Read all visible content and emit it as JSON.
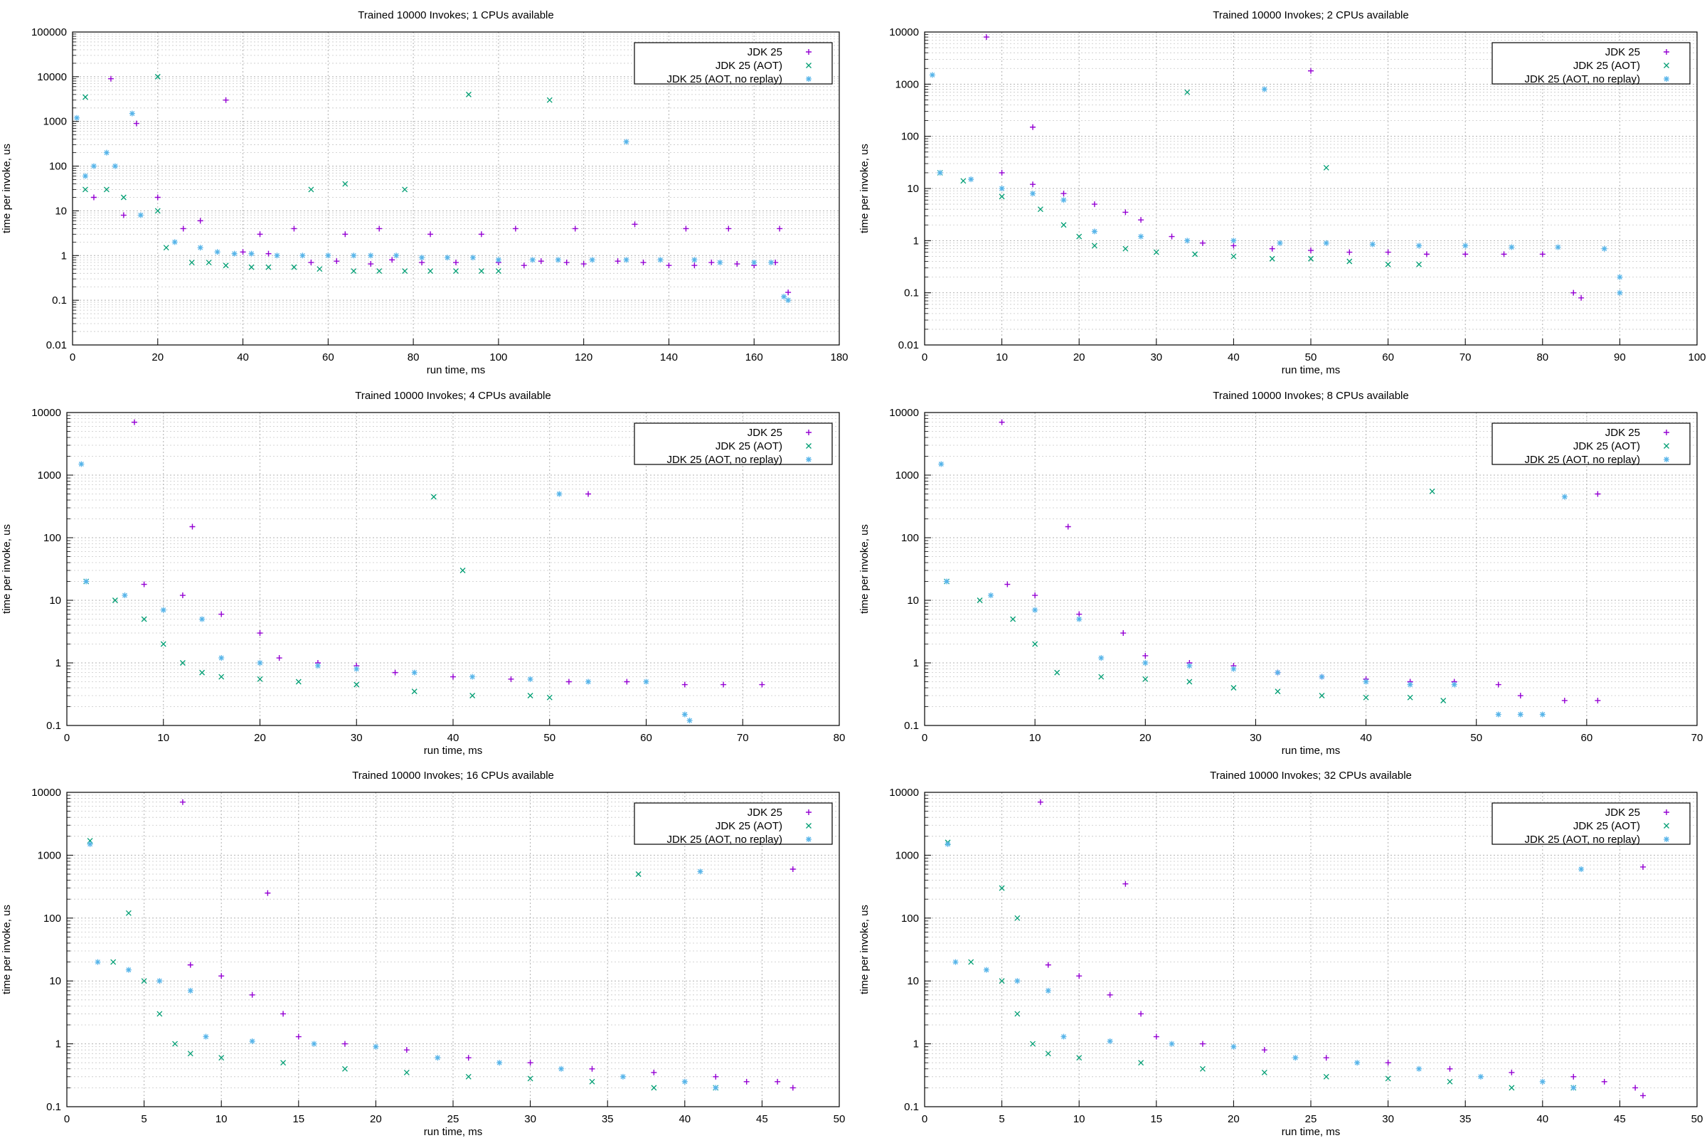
{
  "colors": {
    "jdk25": "#9400d3",
    "aot": "#009e73",
    "aot_noreplay": "#56b4e9"
  },
  "legend": [
    {
      "label": "JDK 25",
      "marker": "+",
      "color_key": "jdk25"
    },
    {
      "label": "JDK 25 (AOT)",
      "marker": "x",
      "color_key": "aot"
    },
    {
      "label": "JDK 25 (AOT, no replay)",
      "marker": "*",
      "color_key": "aot_noreplay"
    }
  ],
  "chart_data": [
    {
      "type": "scatter",
      "title": "Trained 10000 Invokes; 1 CPUs available",
      "xlabel": "run time, ms",
      "ylabel": "time per invoke, us",
      "xlim": [
        0,
        180
      ],
      "xticks": [
        0,
        20,
        40,
        60,
        80,
        100,
        120,
        140,
        160,
        180
      ],
      "ylim": [
        0.01,
        100000
      ],
      "yticks": [
        0.01,
        0.1,
        1,
        10,
        100,
        1000,
        10000,
        100000
      ],
      "ytick_labels": [
        "0.01",
        "0.1",
        "1",
        "10",
        "100",
        "1000",
        "10000",
        "100000"
      ],
      "yscale": "log",
      "grid": true,
      "legend_position": "top-right",
      "series": [
        {
          "name": "JDK 25",
          "x": [
            9,
            15,
            20,
            30,
            40,
            46,
            56,
            62,
            70,
            75,
            82,
            90,
            100,
            106,
            110,
            116,
            120,
            128,
            134,
            140,
            146,
            150,
            156,
            160,
            165,
            168,
            5,
            12,
            26,
            36,
            44,
            52,
            64,
            72,
            84,
            96,
            104,
            118,
            132,
            144,
            154,
            166
          ],
          "y": [
            9000,
            900,
            20,
            6,
            1.2,
            1.1,
            0.7,
            0.75,
            0.65,
            0.8,
            0.7,
            0.7,
            0.7,
            0.6,
            0.75,
            0.7,
            0.65,
            0.75,
            0.7,
            0.6,
            0.6,
            0.7,
            0.65,
            0.6,
            0.7,
            0.15,
            20,
            8,
            4,
            3000,
            3,
            4,
            3,
            4,
            3,
            3,
            4,
            4,
            5,
            4,
            4,
            4
          ]
        },
        {
          "name": "JDK 25 (AOT)",
          "x": [
            3,
            8,
            12,
            20,
            22,
            28,
            32,
            36,
            42,
            46,
            52,
            58,
            66,
            72,
            78,
            84,
            90,
            96,
            100,
            3,
            20,
            56,
            64,
            78,
            93,
            112
          ],
          "y": [
            3500,
            30,
            20,
            10000,
            1.5,
            0.7,
            0.7,
            0.6,
            0.55,
            0.55,
            0.55,
            0.5,
            0.45,
            0.45,
            0.45,
            0.45,
            0.45,
            0.45,
            0.45,
            30,
            10,
            30,
            40,
            30,
            4000,
            3000
          ],
          "marker": "x"
        },
        {
          "name": "JDK 25 (AOT, no replay)",
          "x": [
            1,
            3,
            5,
            8,
            10,
            14,
            16,
            24,
            30,
            34,
            38,
            42,
            48,
            54,
            60,
            66,
            70,
            76,
            82,
            88,
            94,
            100,
            108,
            114,
            122,
            130,
            138,
            146,
            152,
            160,
            164,
            167,
            168,
            130
          ],
          "y": [
            1200,
            60,
            100,
            200,
            100,
            1500,
            8,
            2,
            1.5,
            1.2,
            1.1,
            1.1,
            1,
            1,
            1,
            1,
            1,
            1,
            0.9,
            0.9,
            0.9,
            0.8,
            0.8,
            0.8,
            0.8,
            0.8,
            0.8,
            0.8,
            0.7,
            0.7,
            0.7,
            0.12,
            0.1,
            350
          ],
          "marker": "*"
        }
      ]
    },
    {
      "type": "scatter",
      "title": "Trained 10000 Invokes; 2 CPUs available",
      "xlabel": "run time, ms",
      "ylabel": "time per invoke, us",
      "xlim": [
        0,
        100
      ],
      "xticks": [
        0,
        10,
        20,
        30,
        40,
        50,
        60,
        70,
        80,
        90,
        100
      ],
      "ylim": [
        0.01,
        10000
      ],
      "yticks": [
        0.01,
        0.1,
        1,
        10,
        100,
        1000,
        10000
      ],
      "ytick_labels": [
        "0.01",
        "0.1",
        "1",
        "10",
        "100",
        "1000",
        "10000"
      ],
      "yscale": "log",
      "grid": true,
      "legend_position": "top-right",
      "series": [
        {
          "name": "JDK 25",
          "x": [
            8,
            10,
            14,
            18,
            22,
            26,
            28,
            32,
            36,
            40,
            45,
            50,
            55,
            60,
            65,
            70,
            75,
            80,
            84,
            85,
            50,
            14
          ],
          "y": [
            8000,
            20,
            12,
            8,
            5,
            3.5,
            2.5,
            1.2,
            0.9,
            0.8,
            0.7,
            0.65,
            0.6,
            0.6,
            0.55,
            0.55,
            0.55,
            0.55,
            0.1,
            0.08,
            1800,
            150
          ]
        },
        {
          "name": "JDK 25 (AOT)",
          "x": [
            2,
            5,
            10,
            15,
            18,
            20,
            22,
            26,
            30,
            35,
            40,
            45,
            50,
            55,
            60,
            64,
            34,
            52
          ],
          "y": [
            20,
            14,
            7,
            4,
            2,
            1.2,
            0.8,
            0.7,
            0.6,
            0.55,
            0.5,
            0.45,
            0.45,
            0.4,
            0.35,
            0.35,
            700,
            25
          ],
          "marker": "x"
        },
        {
          "name": "JDK 25 (AOT, no replay)",
          "x": [
            1,
            2,
            6,
            10,
            14,
            18,
            22,
            28,
            34,
            40,
            46,
            52,
            58,
            64,
            70,
            76,
            82,
            88,
            90,
            90,
            44
          ],
          "y": [
            1500,
            20,
            15,
            10,
            8,
            6,
            1.5,
            1.2,
            1,
            1,
            0.9,
            0.9,
            0.85,
            0.8,
            0.8,
            0.75,
            0.75,
            0.7,
            0.1,
            0.2,
            800
          ],
          "marker": "*"
        }
      ]
    },
    {
      "type": "scatter",
      "title": "Trained 10000 Invokes; 4 CPUs available",
      "xlabel": "run time, ms",
      "ylabel": "time per invoke, us",
      "xlim": [
        0,
        80
      ],
      "xticks": [
        0,
        10,
        20,
        30,
        40,
        50,
        60,
        70,
        80
      ],
      "ylim": [
        0.1,
        10000
      ],
      "yticks": [
        0.1,
        1,
        10,
        100,
        1000,
        10000
      ],
      "ytick_labels": [
        "0.1",
        "1",
        "10",
        "100",
        "1000",
        "10000"
      ],
      "yscale": "log",
      "grid": true,
      "legend_position": "top-right",
      "series": [
        {
          "name": "JDK 25",
          "x": [
            7,
            8,
            12,
            16,
            20,
            22,
            26,
            30,
            34,
            40,
            46,
            52,
            58,
            64,
            68,
            72,
            13,
            54
          ],
          "y": [
            7000,
            18,
            12,
            6,
            3,
            1.2,
            1,
            0.9,
            0.7,
            0.6,
            0.55,
            0.5,
            0.5,
            0.45,
            0.45,
            0.45,
            150,
            500
          ]
        },
        {
          "name": "JDK 25 (AOT)",
          "x": [
            2,
            5,
            8,
            10,
            12,
            14,
            16,
            20,
            24,
            30,
            36,
            42,
            48,
            50,
            38,
            41
          ],
          "y": [
            20,
            10,
            5,
            2,
            1,
            0.7,
            0.6,
            0.55,
            0.5,
            0.45,
            0.35,
            0.3,
            0.3,
            0.28,
            450,
            30
          ],
          "marker": "x"
        },
        {
          "name": "JDK 25 (AOT, no replay)",
          "x": [
            1.5,
            2,
            6,
            10,
            14,
            16,
            20,
            26,
            30,
            36,
            42,
            48,
            54,
            60,
            64,
            64.5,
            51
          ],
          "y": [
            1500,
            20,
            12,
            7,
            5,
            1.2,
            1,
            0.9,
            0.8,
            0.7,
            0.6,
            0.55,
            0.5,
            0.5,
            0.15,
            0.12,
            500
          ],
          "marker": "*"
        }
      ]
    },
    {
      "type": "scatter",
      "title": "Trained 10000 Invokes; 8 CPUs available",
      "xlabel": "run time, ms",
      "ylabel": "time per invoke, us",
      "xlim": [
        0,
        70
      ],
      "xticks": [
        0,
        10,
        20,
        30,
        40,
        50,
        60,
        70
      ],
      "ylim": [
        0.1,
        10000
      ],
      "yticks": [
        0.1,
        1,
        10,
        100,
        1000,
        10000
      ],
      "ytick_labels": [
        "0.1",
        "1",
        "10",
        "100",
        "1000",
        "10000"
      ],
      "yscale": "log",
      "grid": true,
      "legend_position": "top-right",
      "series": [
        {
          "name": "JDK 25",
          "x": [
            7,
            7.5,
            10,
            14,
            18,
            20,
            24,
            28,
            32,
            36,
            40,
            44,
            48,
            52,
            54,
            58,
            61,
            13,
            61
          ],
          "y": [
            7000,
            18,
            12,
            6,
            3,
            1.3,
            1,
            0.9,
            0.7,
            0.6,
            0.55,
            0.5,
            0.5,
            0.45,
            0.3,
            0.25,
            0.25,
            150,
            500
          ]
        },
        {
          "name": "JDK 25 (AOT)",
          "x": [
            2,
            5,
            8,
            10,
            12,
            16,
            20,
            24,
            28,
            32,
            36,
            40,
            44,
            47,
            46
          ],
          "y": [
            20,
            10,
            5,
            2,
            0.7,
            0.6,
            0.55,
            0.5,
            0.4,
            0.35,
            0.3,
            0.28,
            0.28,
            0.25,
            550
          ],
          "marker": "x"
        },
        {
          "name": "JDK 25 (AOT, no replay)",
          "x": [
            1.5,
            2,
            6,
            10,
            14,
            16,
            20,
            24,
            28,
            32,
            36,
            40,
            44,
            48,
            52,
            54,
            56,
            58
          ],
          "y": [
            1500,
            20,
            12,
            7,
            5,
            1.2,
            1,
            0.9,
            0.8,
            0.7,
            0.6,
            0.5,
            0.45,
            0.45,
            0.15,
            0.15,
            0.15,
            450
          ],
          "marker": "*"
        }
      ]
    },
    {
      "type": "scatter",
      "title": "Trained 10000 Invokes; 16 CPUs available",
      "xlabel": "run time, ms",
      "ylabel": "time per invoke, us",
      "xlim": [
        0,
        50
      ],
      "xticks": [
        0,
        5,
        10,
        15,
        20,
        25,
        30,
        35,
        40,
        45,
        50
      ],
      "ylim": [
        0.1,
        10000
      ],
      "yticks": [
        0.1,
        1,
        10,
        100,
        1000,
        10000
      ],
      "ytick_labels": [
        "0.1",
        "1",
        "10",
        "100",
        "1000",
        "10000"
      ],
      "yscale": "log",
      "grid": true,
      "legend_position": "top-right",
      "series": [
        {
          "name": "JDK 25",
          "x": [
            7.5,
            8,
            10,
            12,
            14,
            15,
            18,
            22,
            26,
            30,
            34,
            38,
            42,
            44,
            46,
            47,
            13,
            47
          ],
          "y": [
            7000,
            18,
            12,
            6,
            3,
            1.3,
            1,
            0.8,
            0.6,
            0.5,
            0.4,
            0.35,
            0.3,
            0.25,
            0.25,
            0.2,
            250,
            600
          ]
        },
        {
          "name": "JDK 25 (AOT)",
          "x": [
            1.5,
            3,
            5,
            6,
            7,
            8,
            10,
            14,
            18,
            22,
            26,
            30,
            34,
            38,
            42,
            4,
            37
          ],
          "y": [
            1700,
            20,
            10,
            3,
            1,
            0.7,
            0.6,
            0.5,
            0.4,
            0.35,
            0.3,
            0.28,
            0.25,
            0.2,
            0.2,
            120,
            500
          ],
          "marker": "x"
        },
        {
          "name": "JDK 25 (AOT, no replay)",
          "x": [
            1.5,
            2,
            4,
            6,
            8,
            9,
            12,
            16,
            20,
            24,
            28,
            32,
            36,
            40,
            42,
            41
          ],
          "y": [
            1500,
            20,
            15,
            10,
            7,
            1.3,
            1.1,
            1,
            0.9,
            0.6,
            0.5,
            0.4,
            0.3,
            0.25,
            0.2,
            550
          ],
          "marker": "*"
        }
      ]
    },
    {
      "type": "scatter",
      "title": "Trained 10000 Invokes; 32 CPUs available",
      "xlabel": "run time, ms",
      "ylabel": "time per invoke, us",
      "xlim": [
        0,
        50
      ],
      "xticks": [
        0,
        5,
        10,
        15,
        20,
        25,
        30,
        35,
        40,
        45,
        50
      ],
      "ylim": [
        0.1,
        10000
      ],
      "yticks": [
        0.1,
        1,
        10,
        100,
        1000,
        10000
      ],
      "ytick_labels": [
        "0.1",
        "1",
        "10",
        "100",
        "1000",
        "10000"
      ],
      "yscale": "log",
      "grid": true,
      "legend_position": "top-right",
      "series": [
        {
          "name": "JDK 25",
          "x": [
            7.5,
            8,
            10,
            12,
            14,
            15,
            18,
            22,
            26,
            30,
            34,
            38,
            42,
            44,
            46,
            46.5,
            13,
            46.5
          ],
          "y": [
            7000,
            18,
            12,
            6,
            3,
            1.3,
            1,
            0.8,
            0.6,
            0.5,
            0.4,
            0.35,
            0.3,
            0.25,
            0.2,
            0.15,
            350,
            650
          ]
        },
        {
          "name": "JDK 25 (AOT)",
          "x": [
            1.5,
            3,
            5,
            6,
            7,
            8,
            10,
            14,
            18,
            22,
            26,
            30,
            34,
            38,
            42,
            5,
            6
          ],
          "y": [
            1600,
            20,
            10,
            3,
            1,
            0.7,
            0.6,
            0.5,
            0.4,
            0.35,
            0.3,
            0.28,
            0.25,
            0.2,
            0.2,
            300,
            100
          ],
          "marker": "x"
        },
        {
          "name": "JDK 25 (AOT, no replay)",
          "x": [
            1.5,
            2,
            4,
            6,
            8,
            9,
            12,
            16,
            20,
            24,
            28,
            32,
            36,
            40,
            42,
            42.5
          ],
          "y": [
            1500,
            20,
            15,
            10,
            7,
            1.3,
            1.1,
            1,
            0.9,
            0.6,
            0.5,
            0.4,
            0.3,
            0.25,
            0.2,
            600
          ],
          "marker": "*"
        }
      ]
    }
  ]
}
